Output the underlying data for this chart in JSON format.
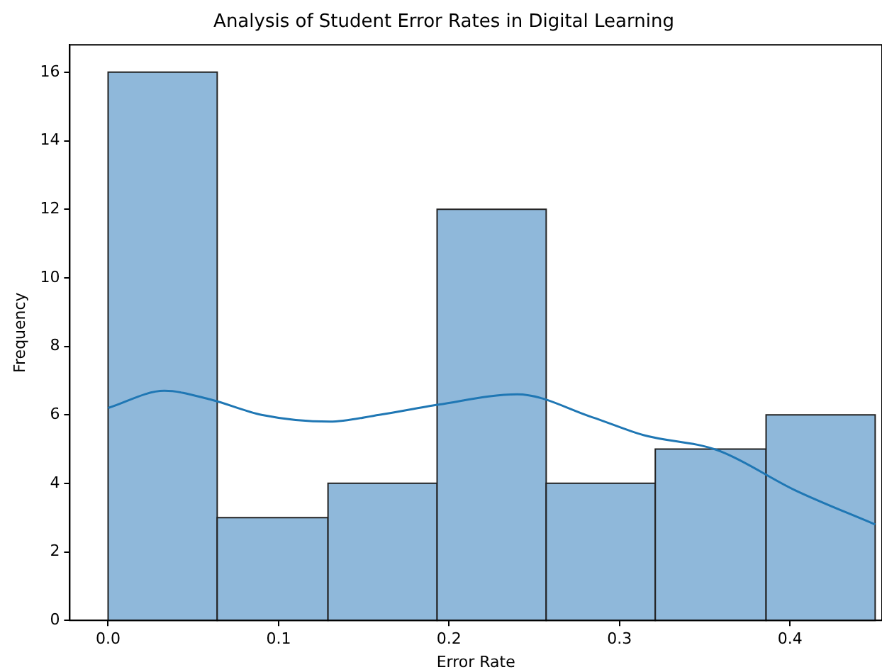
{
  "chart_data": {
    "type": "histogram",
    "title": "Analysis of Student Error Rates in Digital Learning",
    "xlabel": "Error Rate",
    "ylabel": "Frequency",
    "bins": [
      0,
      0.064,
      0.129,
      0.193,
      0.257,
      0.321,
      0.386,
      0.45
    ],
    "values": [
      16,
      3,
      4,
      12,
      4,
      5,
      6
    ],
    "color": "#8fb8da",
    "series": [
      {
        "type": "line",
        "color": "#1f77b4",
        "x": [
          0,
          0.033,
          0.06,
          0.09,
          0.13,
          0.159,
          0.194,
          0.24,
          0.284,
          0.314,
          0.358,
          0.403,
          0.45
        ],
        "values": [
          6.2,
          6.7,
          6.45,
          6.0,
          5.8,
          6.0,
          6.3,
          6.6,
          5.93,
          5.41,
          4.96,
          3.8,
          2.8
        ]
      }
    ],
    "xlim": [
      -0.0225,
      0.454
    ],
    "ylim": [
      0,
      16.8
    ],
    "xticks": [
      {
        "value": 0,
        "label": "0.0"
      },
      {
        "value": 0.1,
        "label": "0.1"
      },
      {
        "value": 0.2,
        "label": "0.2"
      },
      {
        "value": 0.3,
        "label": "0.3"
      },
      {
        "value": 0.4,
        "label": "0.4"
      }
    ],
    "yticks": [
      0,
      2,
      4,
      6,
      8,
      10,
      12,
      14,
      16
    ],
    "grid": false
  }
}
